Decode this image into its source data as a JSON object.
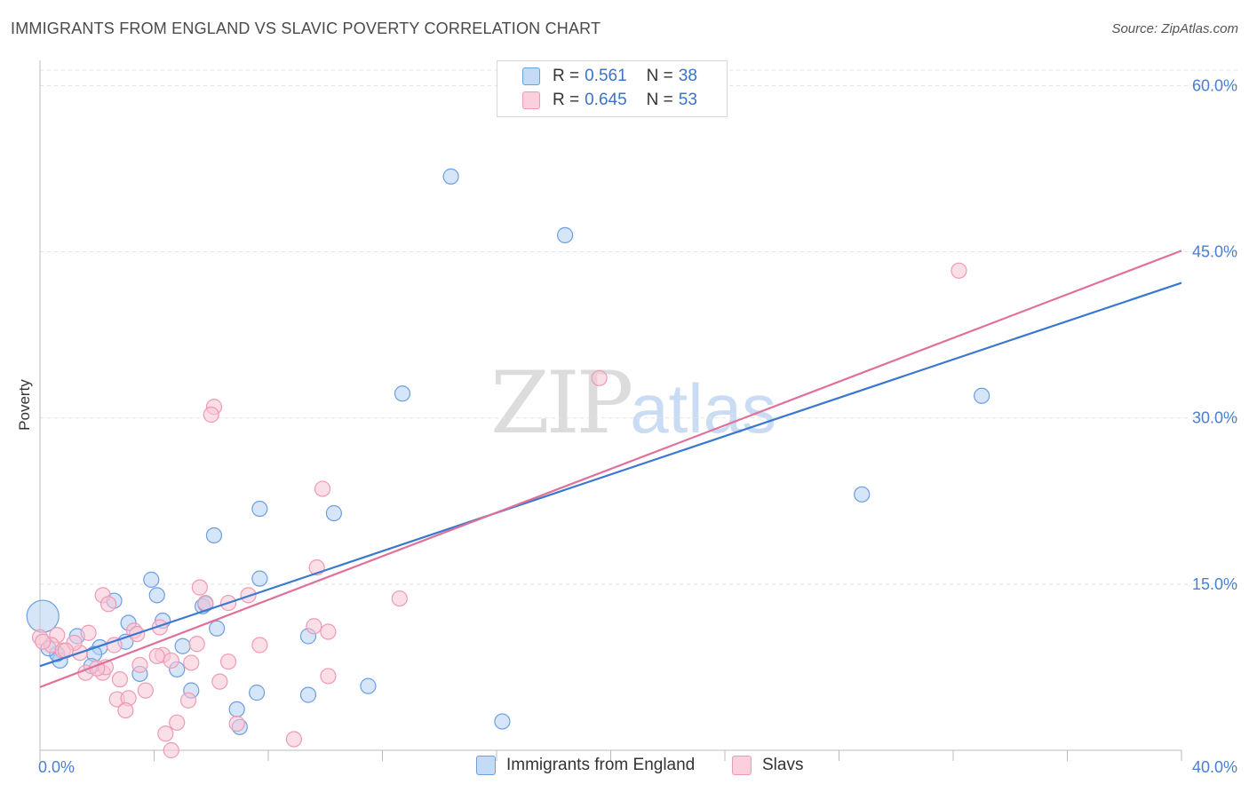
{
  "title": "IMMIGRANTS FROM ENGLAND VS SLAVIC POVERTY CORRELATION CHART",
  "source": "Source: ZipAtlas.com",
  "watermark": {
    "zip": "ZIP",
    "atlas": "atlas"
  },
  "legend": {
    "rows": [
      {
        "r_label": "R =",
        "r_value": "0.561",
        "n_label": "N =",
        "n_value": "38",
        "color": "#a9c8f0"
      },
      {
        "r_label": "R =",
        "r_value": "0.645",
        "n_label": "N =",
        "n_value": "53",
        "color": "#f7b8cb"
      }
    ]
  },
  "bottom_legend": [
    {
      "label": "Immigrants from England",
      "color": "#a9c8f0"
    },
    {
      "label": "Slavs",
      "color": "#f7b8cb"
    }
  ],
  "chart_data": {
    "type": "scatter",
    "title": "IMMIGRANTS FROM ENGLAND VS SLAVIC POVERTY CORRELATION CHART",
    "xlabel": "",
    "ylabel": "Poverty",
    "xlim": [
      0,
      40
    ],
    "ylim": [
      0,
      60
    ],
    "x_ticks": [
      "0.0%",
      "40.0%"
    ],
    "y_ticks": [
      {
        "value": 15,
        "label": "15.0%"
      },
      {
        "value": 30,
        "label": "30.0%"
      },
      {
        "value": 45,
        "label": "45.0%"
      },
      {
        "value": 60,
        "label": "60.0%"
      }
    ],
    "grid": true,
    "series": [
      {
        "name": "Immigrants from England",
        "color": "#6a9fe0",
        "fill": "#b7d0f2",
        "trend": {
          "x0": 0,
          "y0": 7.6,
          "x1": 40,
          "y1": 42.2,
          "color": "#3a78d0"
        },
        "points": [
          [
            14.4,
            51.8
          ],
          [
            18.4,
            46.5
          ],
          [
            12.7,
            32.2
          ],
          [
            33.0,
            32.0
          ],
          [
            28.8,
            23.1
          ],
          [
            7.7,
            21.8
          ],
          [
            10.3,
            21.4
          ],
          [
            6.1,
            19.4
          ],
          [
            3.9,
            15.4
          ],
          [
            7.7,
            15.5
          ],
          [
            2.6,
            13.5
          ],
          [
            4.1,
            14.0
          ],
          [
            5.7,
            13.0
          ],
          [
            5.8,
            13.2
          ],
          [
            3.1,
            11.5
          ],
          [
            4.3,
            11.7
          ],
          [
            6.2,
            11.0
          ],
          [
            9.4,
            10.3
          ],
          [
            1.3,
            10.3
          ],
          [
            3.0,
            9.8
          ],
          [
            5.0,
            9.4
          ],
          [
            2.1,
            9.3
          ],
          [
            0.6,
            8.7
          ],
          [
            1.9,
            8.7
          ],
          [
            0.7,
            8.1
          ],
          [
            1.8,
            7.6
          ],
          [
            4.8,
            7.3
          ],
          [
            3.5,
            6.9
          ],
          [
            7.6,
            5.2
          ],
          [
            5.3,
            5.4
          ],
          [
            9.4,
            5.0
          ],
          [
            11.5,
            5.8
          ],
          [
            6.9,
            3.7
          ],
          [
            16.2,
            2.6
          ],
          [
            7.0,
            2.1
          ],
          [
            0.6,
            8.7
          ],
          [
            0.3,
            9.2
          ]
        ],
        "big_point": [
          0.1,
          12.1
        ]
      },
      {
        "name": "Slavs",
        "color": "#ef9ab5",
        "fill": "#f8c5d4",
        "trend": {
          "x0": 0,
          "y0": 5.7,
          "x1": 40,
          "y1": 45.1,
          "color": "#e0709a"
        },
        "points": [
          [
            32.2,
            43.3
          ],
          [
            19.6,
            33.6
          ],
          [
            6.1,
            31.0
          ],
          [
            6.0,
            30.3
          ],
          [
            9.9,
            23.6
          ],
          [
            9.7,
            16.5
          ],
          [
            12.6,
            13.7
          ],
          [
            5.6,
            14.7
          ],
          [
            7.3,
            14.0
          ],
          [
            2.2,
            14.0
          ],
          [
            6.6,
            13.3
          ],
          [
            5.8,
            13.3
          ],
          [
            2.4,
            13.2
          ],
          [
            4.2,
            11.1
          ],
          [
            9.6,
            11.2
          ],
          [
            10.1,
            10.7
          ],
          [
            3.3,
            10.8
          ],
          [
            1.7,
            10.6
          ],
          [
            0.6,
            10.4
          ],
          [
            3.4,
            10.5
          ],
          [
            7.7,
            9.5
          ],
          [
            5.5,
            9.6
          ],
          [
            0.4,
            9.5
          ],
          [
            2.6,
            9.5
          ],
          [
            4.3,
            8.6
          ],
          [
            0.8,
            9.0
          ],
          [
            1.4,
            8.8
          ],
          [
            4.1,
            8.5
          ],
          [
            4.6,
            8.1
          ],
          [
            6.6,
            8.0
          ],
          [
            5.3,
            7.9
          ],
          [
            3.5,
            7.7
          ],
          [
            1.6,
            7.0
          ],
          [
            2.2,
            7.0
          ],
          [
            2.3,
            7.5
          ],
          [
            2.0,
            7.4
          ],
          [
            10.1,
            6.7
          ],
          [
            6.3,
            6.2
          ],
          [
            3.7,
            5.4
          ],
          [
            5.2,
            4.5
          ],
          [
            2.7,
            4.6
          ],
          [
            3.1,
            4.7
          ],
          [
            3.0,
            3.6
          ],
          [
            4.8,
            2.5
          ],
          [
            6.9,
            2.4
          ],
          [
            4.4,
            1.5
          ],
          [
            8.9,
            1.0
          ],
          [
            4.6,
            0.0
          ],
          [
            0.0,
            10.2
          ],
          [
            0.1,
            9.8
          ],
          [
            1.2,
            9.7
          ],
          [
            2.8,
            6.4
          ],
          [
            0.9,
            9.0
          ]
        ]
      }
    ]
  }
}
